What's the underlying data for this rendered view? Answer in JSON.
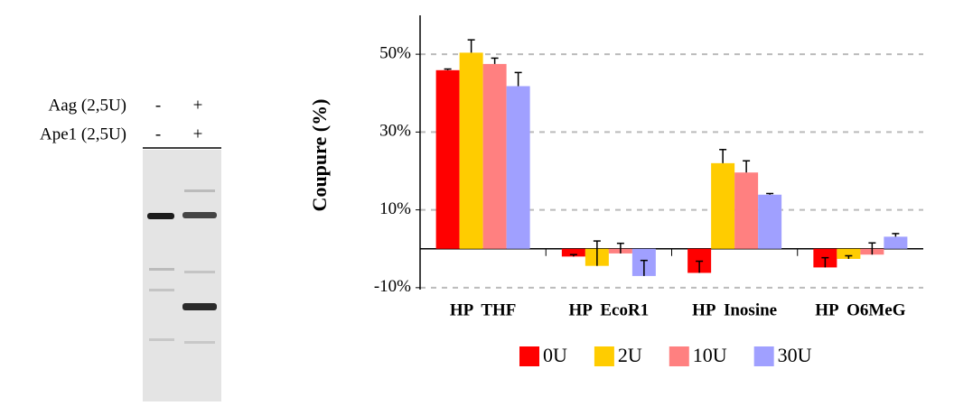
{
  "gel": {
    "rows": [
      {
        "label": "Aag (2,5U)",
        "lanes": [
          "-",
          "+"
        ]
      },
      {
        "label": "Ape1 (2,5U)",
        "lanes": [
          "-",
          "+"
        ]
      }
    ]
  },
  "chart_data": {
    "type": "bar",
    "y_label": "Coupure (%)",
    "categories": [
      "HP  THF",
      "HP  EcoR1",
      "HP  Inosine",
      "HP  O6MeG"
    ],
    "series": [
      {
        "name": "0U",
        "color": "#ff0000",
        "values": [
          45.9,
          -2,
          -6.2,
          -4.8
        ],
        "errors": [
          0.3,
          0.5,
          3,
          2.5
        ]
      },
      {
        "name": "2U",
        "color": "#ffcc00",
        "values": [
          50.4,
          -4.4,
          22,
          -2.6
        ],
        "errors": [
          3.3,
          6.4,
          3.5,
          0.8
        ]
      },
      {
        "name": "10U",
        "color": "#ff8080",
        "values": [
          47.5,
          -1.2,
          19.6,
          -1.5
        ],
        "errors": [
          1.5,
          2.6,
          3,
          3
        ]
      },
      {
        "name": "30U",
        "color": "#a0a0ff",
        "values": [
          41.8,
          -7,
          13.9,
          3.1
        ],
        "errors": [
          3.5,
          4,
          0.3,
          0.8
        ]
      }
    ],
    "ylim": [
      -10.5,
      60
    ],
    "yticks": [
      {
        "value": -10,
        "label": "-10%"
      },
      {
        "value": 10,
        "label": "10%"
      },
      {
        "value": 30,
        "label": "30%"
      },
      {
        "value": 50,
        "label": "50%"
      }
    ],
    "grid": true,
    "legend": "bottom"
  }
}
